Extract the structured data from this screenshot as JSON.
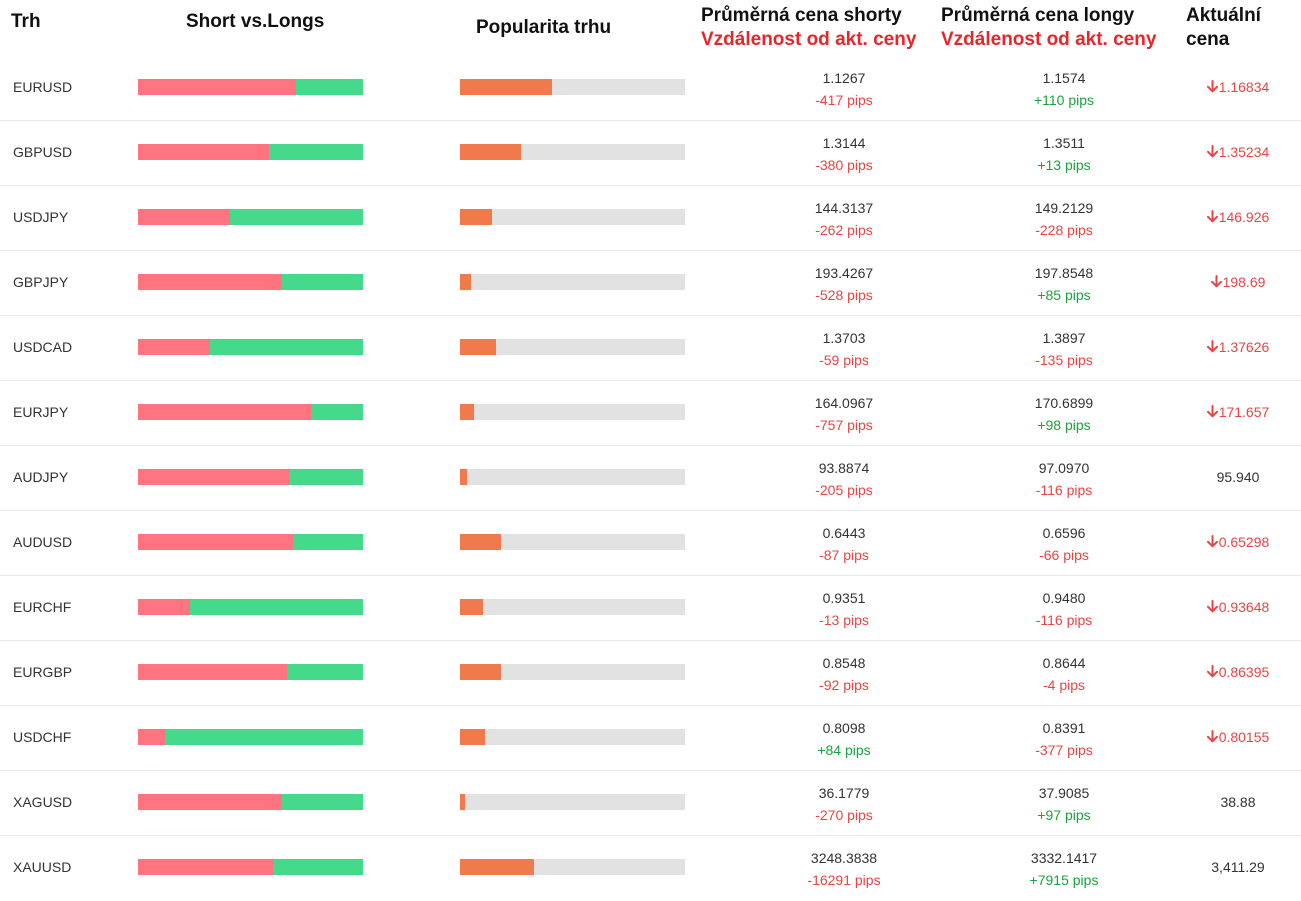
{
  "header": {
    "trh": "Trh",
    "short_vs_longs": "Short vs.Longs",
    "popularita": "Popularita trhu",
    "avg_short": "Průměrná cena shorty",
    "avg_short_sub": "Vzdálenost od akt. ceny",
    "avg_long": "Průměrná cena longy",
    "avg_long_sub": "Vzdálenost od akt. ceny",
    "aktualni_1": "Aktuální",
    "aktualni_2": "cena"
  },
  "colors": {
    "short": "#ff7480",
    "long": "#45d98b",
    "popularity": "#f07a4b",
    "negative": "#e84545",
    "positive": "#1aa33c"
  },
  "rows": [
    {
      "symbol": "EURUSD",
      "short_share": 0.7,
      "popularity": 0.41,
      "short_price": "1.1267",
      "short_pips": "-417 pips",
      "short_dir": "neg",
      "long_price": "1.1574",
      "long_pips": "+110 pips",
      "long_dir": "pos",
      "current": "1.16834",
      "trend": "down",
      "trend_icon": "arrow-down-icon"
    },
    {
      "symbol": "GBPUSD",
      "short_share": 0.58,
      "popularity": 0.27,
      "short_price": "1.3144",
      "short_pips": "-380 pips",
      "short_dir": "neg",
      "long_price": "1.3511",
      "long_pips": "+13 pips",
      "long_dir": "pos",
      "current": "1.35234",
      "trend": "down",
      "trend_icon": "arrow-down-icon"
    },
    {
      "symbol": "USDJPY",
      "short_share": 0.41,
      "popularity": 0.14,
      "short_price": "144.3137",
      "short_pips": "-262 pips",
      "short_dir": "neg",
      "long_price": "149.2129",
      "long_pips": "-228 pips",
      "long_dir": "neg",
      "current": "146.926",
      "trend": "down",
      "trend_icon": "arrow-down-icon"
    },
    {
      "symbol": "GBPJPY",
      "short_share": 0.64,
      "popularity": 0.05,
      "short_price": "193.4267",
      "short_pips": "-528 pips",
      "short_dir": "neg",
      "long_price": "197.8548",
      "long_pips": "+85 pips",
      "long_dir": "pos",
      "current": "198.69",
      "trend": "down",
      "trend_icon": "arrow-down-icon"
    },
    {
      "symbol": "USDCAD",
      "short_share": 0.32,
      "popularity": 0.16,
      "short_price": "1.3703",
      "short_pips": "-59 pips",
      "short_dir": "neg",
      "long_price": "1.3897",
      "long_pips": "-135 pips",
      "long_dir": "neg",
      "current": "1.37626",
      "trend": "down",
      "trend_icon": "arrow-down-icon"
    },
    {
      "symbol": "EURJPY",
      "short_share": 0.77,
      "popularity": 0.06,
      "short_price": "164.0967",
      "short_pips": "-757 pips",
      "short_dir": "neg",
      "long_price": "170.6899",
      "long_pips": "+98 pips",
      "long_dir": "pos",
      "current": "171.657",
      "trend": "down",
      "trend_icon": "arrow-down-icon"
    },
    {
      "symbol": "AUDJPY",
      "short_share": 0.67,
      "popularity": 0.03,
      "short_price": "93.8874",
      "short_pips": "-205 pips",
      "short_dir": "neg",
      "long_price": "97.0970",
      "long_pips": "-116 pips",
      "long_dir": "neg",
      "current": "95.940",
      "trend": "flat",
      "trend_icon": ""
    },
    {
      "symbol": "AUDUSD",
      "short_share": 0.69,
      "popularity": 0.18,
      "short_price": "0.6443",
      "short_pips": "-87 pips",
      "short_dir": "neg",
      "long_price": "0.6596",
      "long_pips": "-66 pips",
      "long_dir": "neg",
      "current": "0.65298",
      "trend": "down",
      "trend_icon": "arrow-down-icon"
    },
    {
      "symbol": "EURCHF",
      "short_share": 0.23,
      "popularity": 0.1,
      "short_price": "0.9351",
      "short_pips": "-13 pips",
      "short_dir": "neg",
      "long_price": "0.9480",
      "long_pips": "-116 pips",
      "long_dir": "neg",
      "current": "0.93648",
      "trend": "down",
      "trend_icon": "arrow-down-icon"
    },
    {
      "symbol": "EURGBP",
      "short_share": 0.66,
      "popularity": 0.18,
      "short_price": "0.8548",
      "short_pips": "-92 pips",
      "short_dir": "neg",
      "long_price": "0.8644",
      "long_pips": "-4 pips",
      "long_dir": "neg",
      "current": "0.86395",
      "trend": "down",
      "trend_icon": "arrow-down-icon"
    },
    {
      "symbol": "USDCHF",
      "short_share": 0.12,
      "popularity": 0.11,
      "short_price": "0.8098",
      "short_pips": "+84 pips",
      "short_dir": "pos",
      "long_price": "0.8391",
      "long_pips": "-377 pips",
      "long_dir": "neg",
      "current": "0.80155",
      "trend": "down",
      "trend_icon": "arrow-down-icon"
    },
    {
      "symbol": "XAGUSD",
      "short_share": 0.64,
      "popularity": 0.02,
      "short_price": "36.1779",
      "short_pips": "-270 pips",
      "short_dir": "neg",
      "long_price": "37.9085",
      "long_pips": "+97 pips",
      "long_dir": "pos",
      "current": "38.88",
      "trend": "flat",
      "trend_icon": ""
    },
    {
      "symbol": "XAUUSD",
      "short_share": 0.6,
      "popularity": 0.33,
      "short_price": "3248.3838",
      "short_pips": "-16291 pips",
      "short_dir": "neg",
      "long_price": "3332.1417",
      "long_pips": "+7915 pips",
      "long_dir": "pos",
      "current": "3,411.29",
      "trend": "flat",
      "trend_icon": ""
    }
  ]
}
